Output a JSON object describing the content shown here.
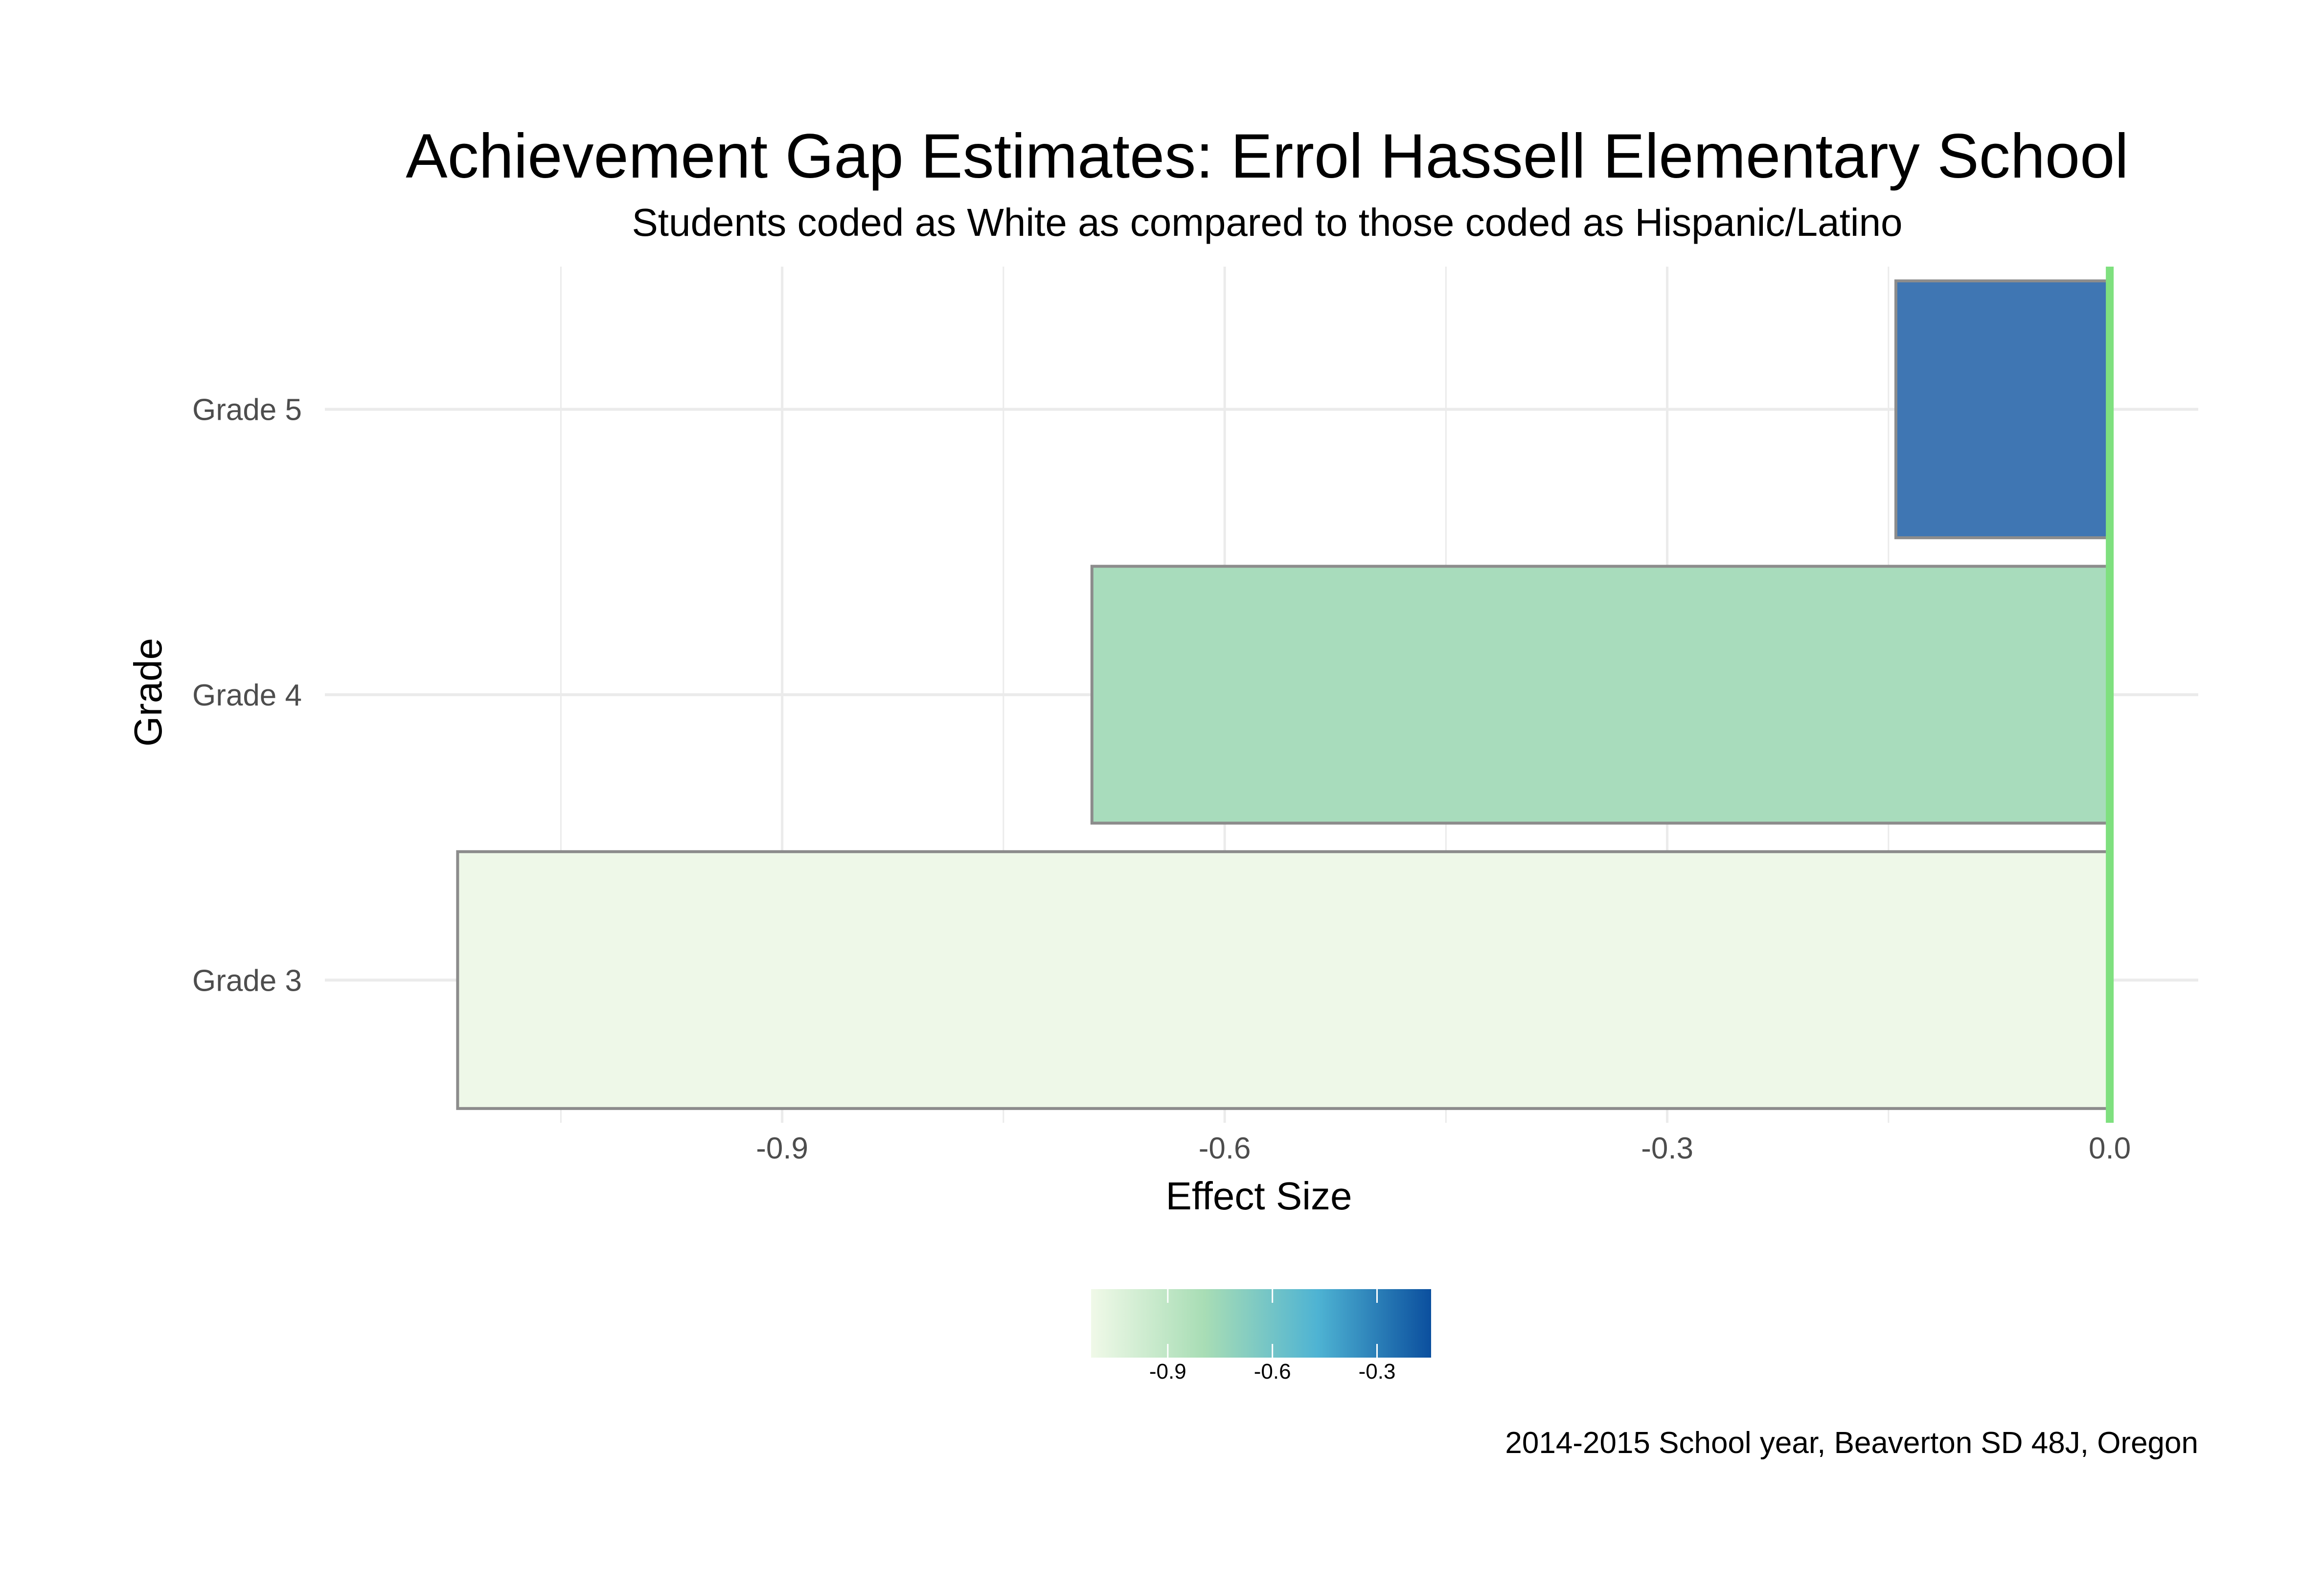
{
  "chart_data": {
    "type": "bar",
    "orientation": "horizontal",
    "title": "Achievement Gap Estimates: Errol Hassell Elementary School",
    "subtitle": "Students coded as White as compared to those coded as Hispanic/Latino",
    "xlabel": "Effect Size",
    "ylabel": "Grade",
    "categories": [
      "Grade 3",
      "Grade 4",
      "Grade 5"
    ],
    "values": [
      -1.12,
      -0.69,
      -0.145
    ],
    "bar_colors": [
      "#eef8e8",
      "#a8dcbc",
      "#3f76b3"
    ],
    "xlim": [
      -1.21,
      0.06
    ],
    "xticks": [
      -0.9,
      -0.6,
      -0.3,
      0.0
    ],
    "xtick_labels": [
      "-0.9",
      "-0.6",
      "-0.3",
      "0.0"
    ],
    "reference_line": {
      "x": 0,
      "color": "#7fe07f"
    },
    "grid": true,
    "legend": {
      "type": "colorbar",
      "placement": "bottom",
      "range": [
        -1.12,
        -0.145
      ],
      "ticks": [
        -0.9,
        -0.6,
        -0.3
      ],
      "tick_labels": [
        "-0.9",
        "-0.6",
        "-0.3"
      ],
      "colors": [
        "#f0f9e8",
        "#a8ddb5",
        "#4eb3d3",
        "#0b4f9e"
      ]
    },
    "caption": "2014-2015 School year, Beaverton SD 48J, Oregon"
  }
}
